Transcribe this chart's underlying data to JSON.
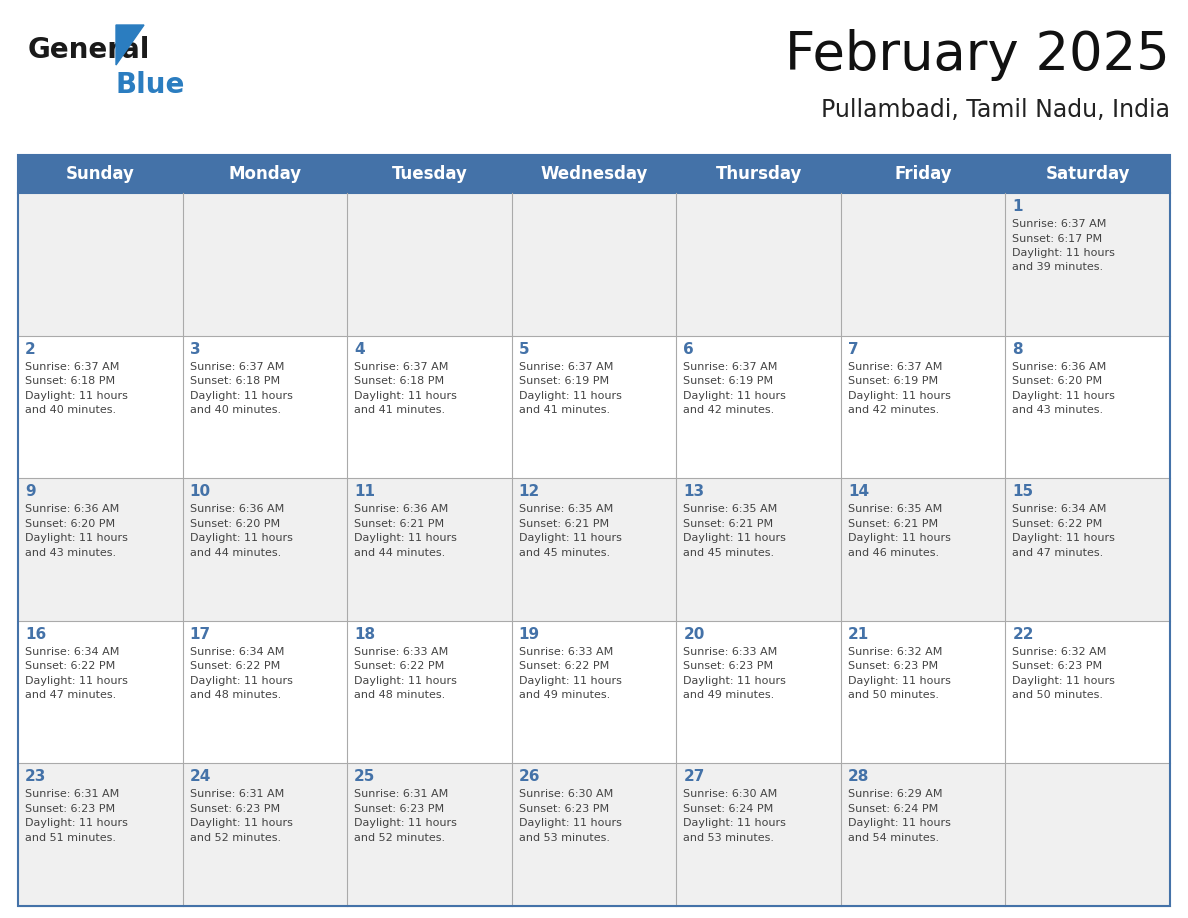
{
  "title": "February 2025",
  "subtitle": "Pullambadi, Tamil Nadu, India",
  "days_of_week": [
    "Sunday",
    "Monday",
    "Tuesday",
    "Wednesday",
    "Thursday",
    "Friday",
    "Saturday"
  ],
  "header_bg": "#4472A8",
  "header_text": "#FFFFFF",
  "cell_bg_odd": "#F0F0F0",
  "cell_bg_even": "#FFFFFF",
  "day_number_color": "#4472A8",
  "text_color": "#444444",
  "border_color": "#4472A8",
  "sep_color": "#AAAAAA",
  "calendar_data": [
    {
      "day": 1,
      "col": 6,
      "row": 0,
      "sunrise": "6:37 AM",
      "sunset": "6:17 PM",
      "daylight_hours": 11,
      "daylight_mins": 39
    },
    {
      "day": 2,
      "col": 0,
      "row": 1,
      "sunrise": "6:37 AM",
      "sunset": "6:18 PM",
      "daylight_hours": 11,
      "daylight_mins": 40
    },
    {
      "day": 3,
      "col": 1,
      "row": 1,
      "sunrise": "6:37 AM",
      "sunset": "6:18 PM",
      "daylight_hours": 11,
      "daylight_mins": 40
    },
    {
      "day": 4,
      "col": 2,
      "row": 1,
      "sunrise": "6:37 AM",
      "sunset": "6:18 PM",
      "daylight_hours": 11,
      "daylight_mins": 41
    },
    {
      "day": 5,
      "col": 3,
      "row": 1,
      "sunrise": "6:37 AM",
      "sunset": "6:19 PM",
      "daylight_hours": 11,
      "daylight_mins": 41
    },
    {
      "day": 6,
      "col": 4,
      "row": 1,
      "sunrise": "6:37 AM",
      "sunset": "6:19 PM",
      "daylight_hours": 11,
      "daylight_mins": 42
    },
    {
      "day": 7,
      "col": 5,
      "row": 1,
      "sunrise": "6:37 AM",
      "sunset": "6:19 PM",
      "daylight_hours": 11,
      "daylight_mins": 42
    },
    {
      "day": 8,
      "col": 6,
      "row": 1,
      "sunrise": "6:36 AM",
      "sunset": "6:20 PM",
      "daylight_hours": 11,
      "daylight_mins": 43
    },
    {
      "day": 9,
      "col": 0,
      "row": 2,
      "sunrise": "6:36 AM",
      "sunset": "6:20 PM",
      "daylight_hours": 11,
      "daylight_mins": 43
    },
    {
      "day": 10,
      "col": 1,
      "row": 2,
      "sunrise": "6:36 AM",
      "sunset": "6:20 PM",
      "daylight_hours": 11,
      "daylight_mins": 44
    },
    {
      "day": 11,
      "col": 2,
      "row": 2,
      "sunrise": "6:36 AM",
      "sunset": "6:21 PM",
      "daylight_hours": 11,
      "daylight_mins": 44
    },
    {
      "day": 12,
      "col": 3,
      "row": 2,
      "sunrise": "6:35 AM",
      "sunset": "6:21 PM",
      "daylight_hours": 11,
      "daylight_mins": 45
    },
    {
      "day": 13,
      "col": 4,
      "row": 2,
      "sunrise": "6:35 AM",
      "sunset": "6:21 PM",
      "daylight_hours": 11,
      "daylight_mins": 45
    },
    {
      "day": 14,
      "col": 5,
      "row": 2,
      "sunrise": "6:35 AM",
      "sunset": "6:21 PM",
      "daylight_hours": 11,
      "daylight_mins": 46
    },
    {
      "day": 15,
      "col": 6,
      "row": 2,
      "sunrise": "6:34 AM",
      "sunset": "6:22 PM",
      "daylight_hours": 11,
      "daylight_mins": 47
    },
    {
      "day": 16,
      "col": 0,
      "row": 3,
      "sunrise": "6:34 AM",
      "sunset": "6:22 PM",
      "daylight_hours": 11,
      "daylight_mins": 47
    },
    {
      "day": 17,
      "col": 1,
      "row": 3,
      "sunrise": "6:34 AM",
      "sunset": "6:22 PM",
      "daylight_hours": 11,
      "daylight_mins": 48
    },
    {
      "day": 18,
      "col": 2,
      "row": 3,
      "sunrise": "6:33 AM",
      "sunset": "6:22 PM",
      "daylight_hours": 11,
      "daylight_mins": 48
    },
    {
      "day": 19,
      "col": 3,
      "row": 3,
      "sunrise": "6:33 AM",
      "sunset": "6:22 PM",
      "daylight_hours": 11,
      "daylight_mins": 49
    },
    {
      "day": 20,
      "col": 4,
      "row": 3,
      "sunrise": "6:33 AM",
      "sunset": "6:23 PM",
      "daylight_hours": 11,
      "daylight_mins": 49
    },
    {
      "day": 21,
      "col": 5,
      "row": 3,
      "sunrise": "6:32 AM",
      "sunset": "6:23 PM",
      "daylight_hours": 11,
      "daylight_mins": 50
    },
    {
      "day": 22,
      "col": 6,
      "row": 3,
      "sunrise": "6:32 AM",
      "sunset": "6:23 PM",
      "daylight_hours": 11,
      "daylight_mins": 50
    },
    {
      "day": 23,
      "col": 0,
      "row": 4,
      "sunrise": "6:31 AM",
      "sunset": "6:23 PM",
      "daylight_hours": 11,
      "daylight_mins": 51
    },
    {
      "day": 24,
      "col": 1,
      "row": 4,
      "sunrise": "6:31 AM",
      "sunset": "6:23 PM",
      "daylight_hours": 11,
      "daylight_mins": 52
    },
    {
      "day": 25,
      "col": 2,
      "row": 4,
      "sunrise": "6:31 AM",
      "sunset": "6:23 PM",
      "daylight_hours": 11,
      "daylight_mins": 52
    },
    {
      "day": 26,
      "col": 3,
      "row": 4,
      "sunrise": "6:30 AM",
      "sunset": "6:23 PM",
      "daylight_hours": 11,
      "daylight_mins": 53
    },
    {
      "day": 27,
      "col": 4,
      "row": 4,
      "sunrise": "6:30 AM",
      "sunset": "6:24 PM",
      "daylight_hours": 11,
      "daylight_mins": 53
    },
    {
      "day": 28,
      "col": 5,
      "row": 4,
      "sunrise": "6:29 AM",
      "sunset": "6:24 PM",
      "daylight_hours": 11,
      "daylight_mins": 54
    }
  ],
  "logo_color_general": "#1a1a1a",
  "logo_color_blue": "#2B7DC0",
  "logo_triangle_color": "#2B7DC0",
  "fig_width": 11.88,
  "fig_height": 9.18,
  "dpi": 100
}
